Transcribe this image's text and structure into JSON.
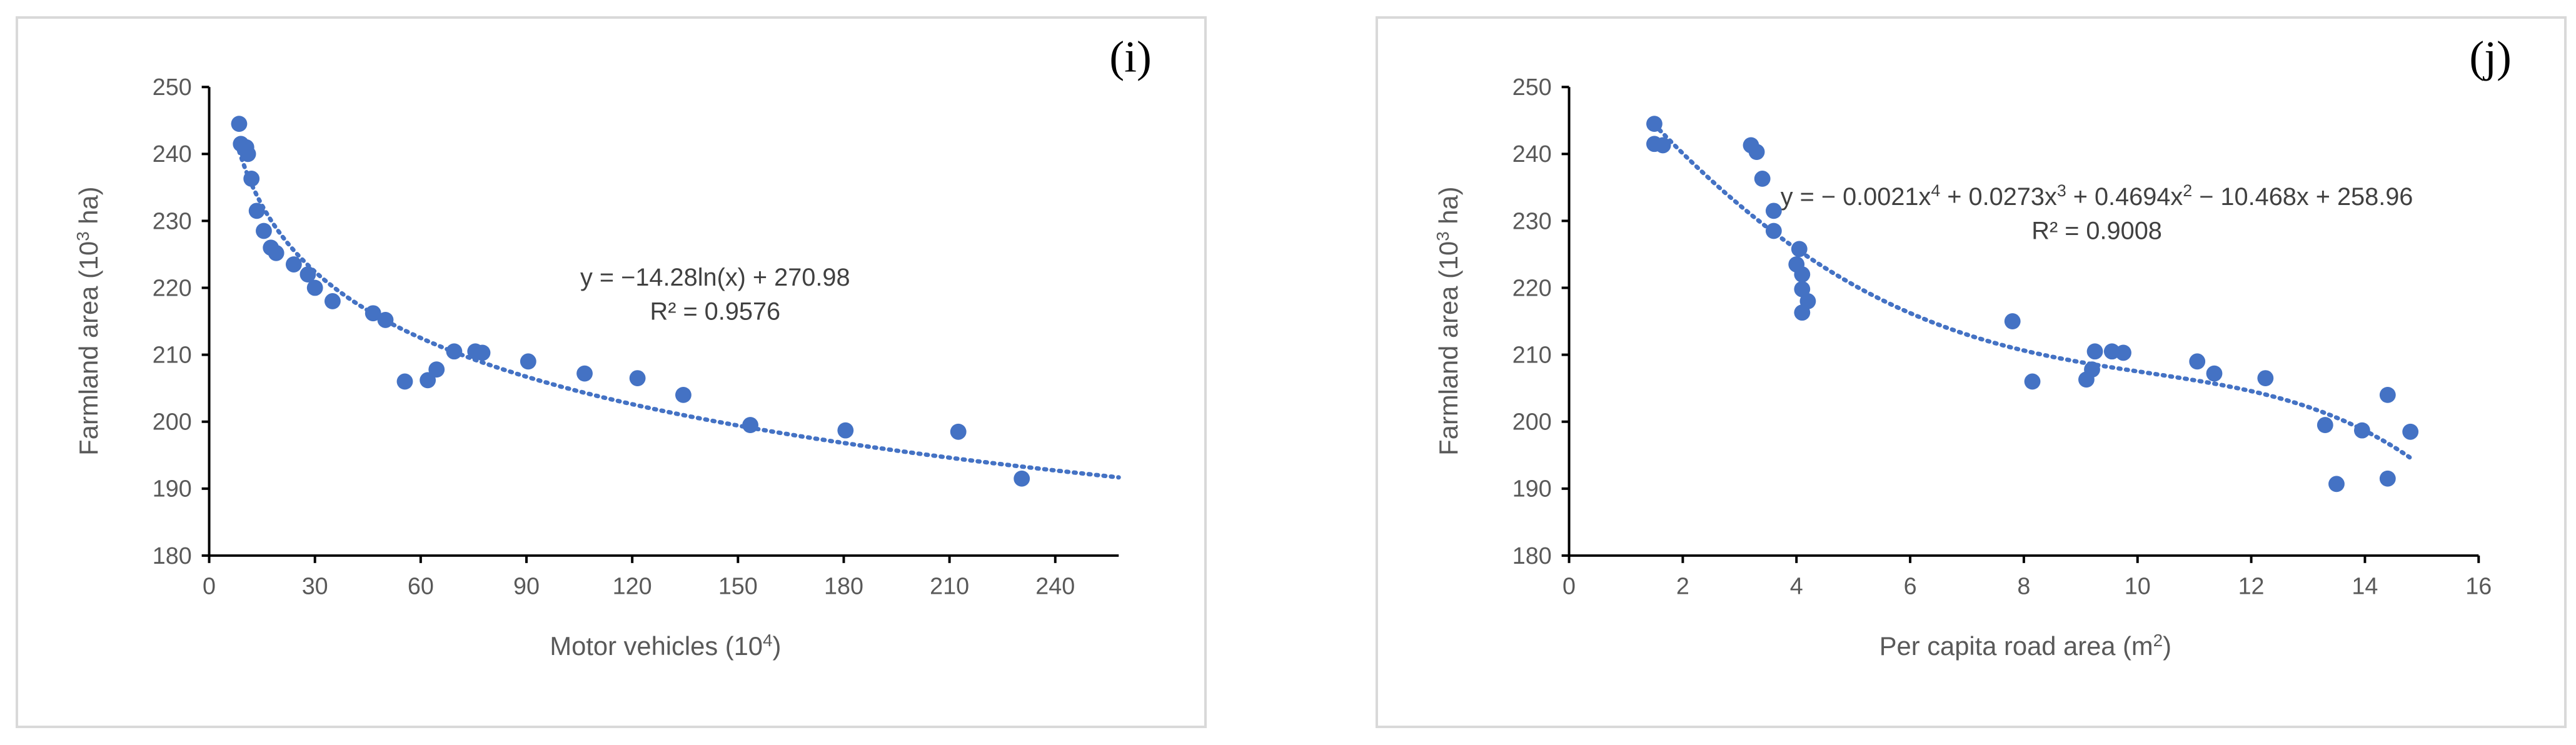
{
  "chart_data": [
    {
      "type": "scatter",
      "panel_label": "(i)",
      "xlabel": "Motor vehicles (10",
      "xlabel_sup": "4",
      "xlabel_suffix": ")",
      "ylabel": "Farmland area (10",
      "ylabel_sup": "3",
      "ylabel_suffix": " ha)",
      "xlim": [
        0,
        258
      ],
      "ylim": [
        180,
        250
      ],
      "xticks": [
        0,
        30,
        60,
        90,
        120,
        150,
        180,
        210,
        240
      ],
      "yticks": [
        180,
        190,
        200,
        210,
        220,
        230,
        240,
        250
      ],
      "points": [
        {
          "x": 8.5,
          "y": 244.5
        },
        {
          "x": 9.0,
          "y": 241.5
        },
        {
          "x": 10.5,
          "y": 241.0
        },
        {
          "x": 11.0,
          "y": 240.0
        },
        {
          "x": 12.0,
          "y": 236.3
        },
        {
          "x": 13.5,
          "y": 231.5
        },
        {
          "x": 15.5,
          "y": 228.5
        },
        {
          "x": 17.5,
          "y": 226.0
        },
        {
          "x": 19.0,
          "y": 225.2
        },
        {
          "x": 24.0,
          "y": 223.5
        },
        {
          "x": 28.0,
          "y": 222.0
        },
        {
          "x": 30.0,
          "y": 220.0
        },
        {
          "x": 35.0,
          "y": 218.0
        },
        {
          "x": 46.5,
          "y": 216.2
        },
        {
          "x": 50.0,
          "y": 215.2
        },
        {
          "x": 55.5,
          "y": 206.0
        },
        {
          "x": 62.0,
          "y": 206.2
        },
        {
          "x": 64.5,
          "y": 207.8
        },
        {
          "x": 69.5,
          "y": 210.5
        },
        {
          "x": 75.5,
          "y": 210.5
        },
        {
          "x": 77.5,
          "y": 210.3
        },
        {
          "x": 90.5,
          "y": 209.0
        },
        {
          "x": 106.5,
          "y": 207.2
        },
        {
          "x": 121.5,
          "y": 206.5
        },
        {
          "x": 134.5,
          "y": 204.0
        },
        {
          "x": 153.5,
          "y": 199.5
        },
        {
          "x": 180.5,
          "y": 198.7
        },
        {
          "x": 212.5,
          "y": 198.5
        },
        {
          "x": 230.5,
          "y": 191.5
        }
      ],
      "trendline": {
        "kind": "log",
        "a": -14.28,
        "b": 270.98,
        "x_from": 8.5,
        "x_to": 258
      },
      "equation": "y = −14.28ln(x) + 270.98",
      "r2": "R² = 0.9576",
      "marker_color": "#4472c4",
      "grid": false
    },
    {
      "type": "scatter",
      "panel_label": "(j)",
      "xlabel": "Per capita road area (m",
      "xlabel_sup": "2",
      "xlabel_suffix": ")",
      "ylabel": "Farmland area (10",
      "ylabel_sup": "3",
      "ylabel_suffix": " ha)",
      "xlim": [
        0,
        16
      ],
      "ylim": [
        180,
        250
      ],
      "xticks": [
        0,
        2,
        4,
        6,
        8,
        10,
        12,
        14,
        16
      ],
      "yticks": [
        180,
        190,
        200,
        210,
        220,
        230,
        240,
        250
      ],
      "points": [
        {
          "x": 1.5,
          "y": 244.5
        },
        {
          "x": 1.5,
          "y": 241.5
        },
        {
          "x": 1.65,
          "y": 241.3
        },
        {
          "x": 3.2,
          "y": 241.3
        },
        {
          "x": 3.3,
          "y": 240.3
        },
        {
          "x": 3.4,
          "y": 236.3
        },
        {
          "x": 3.6,
          "y": 231.5
        },
        {
          "x": 3.6,
          "y": 228.5
        },
        {
          "x": 4.05,
          "y": 225.8
        },
        {
          "x": 4.0,
          "y": 223.5
        },
        {
          "x": 4.1,
          "y": 222.0
        },
        {
          "x": 4.1,
          "y": 219.8
        },
        {
          "x": 4.2,
          "y": 218.0
        },
        {
          "x": 4.1,
          "y": 216.3
        },
        {
          "x": 7.8,
          "y": 215.0
        },
        {
          "x": 8.15,
          "y": 206.0
        },
        {
          "x": 9.1,
          "y": 206.3
        },
        {
          "x": 9.2,
          "y": 207.8
        },
        {
          "x": 9.25,
          "y": 210.5
        },
        {
          "x": 9.55,
          "y": 210.5
        },
        {
          "x": 9.75,
          "y": 210.3
        },
        {
          "x": 11.05,
          "y": 209.0
        },
        {
          "x": 11.35,
          "y": 207.2
        },
        {
          "x": 12.25,
          "y": 206.5
        },
        {
          "x": 13.3,
          "y": 199.5
        },
        {
          "x": 13.5,
          "y": 190.7
        },
        {
          "x": 13.95,
          "y": 198.7
        },
        {
          "x": 14.4,
          "y": 204.0
        },
        {
          "x": 14.4,
          "y": 191.5
        },
        {
          "x": 14.8,
          "y": 198.5
        }
      ],
      "trendline": {
        "kind": "poly",
        "coeffs": [
          258.96,
          -10.468,
          0.4694,
          0.0273,
          -0.0021
        ],
        "x_from": 1.5,
        "x_to": 14.8
      },
      "equation_parts": [
        "y = − 0.0021x",
        "4",
        " + 0.0273x",
        "3",
        " + 0.4694x",
        "2",
        " − 10.468x + 258.96"
      ],
      "r2": "R² = 0.9008",
      "marker_color": "#4472c4",
      "grid": false
    }
  ]
}
